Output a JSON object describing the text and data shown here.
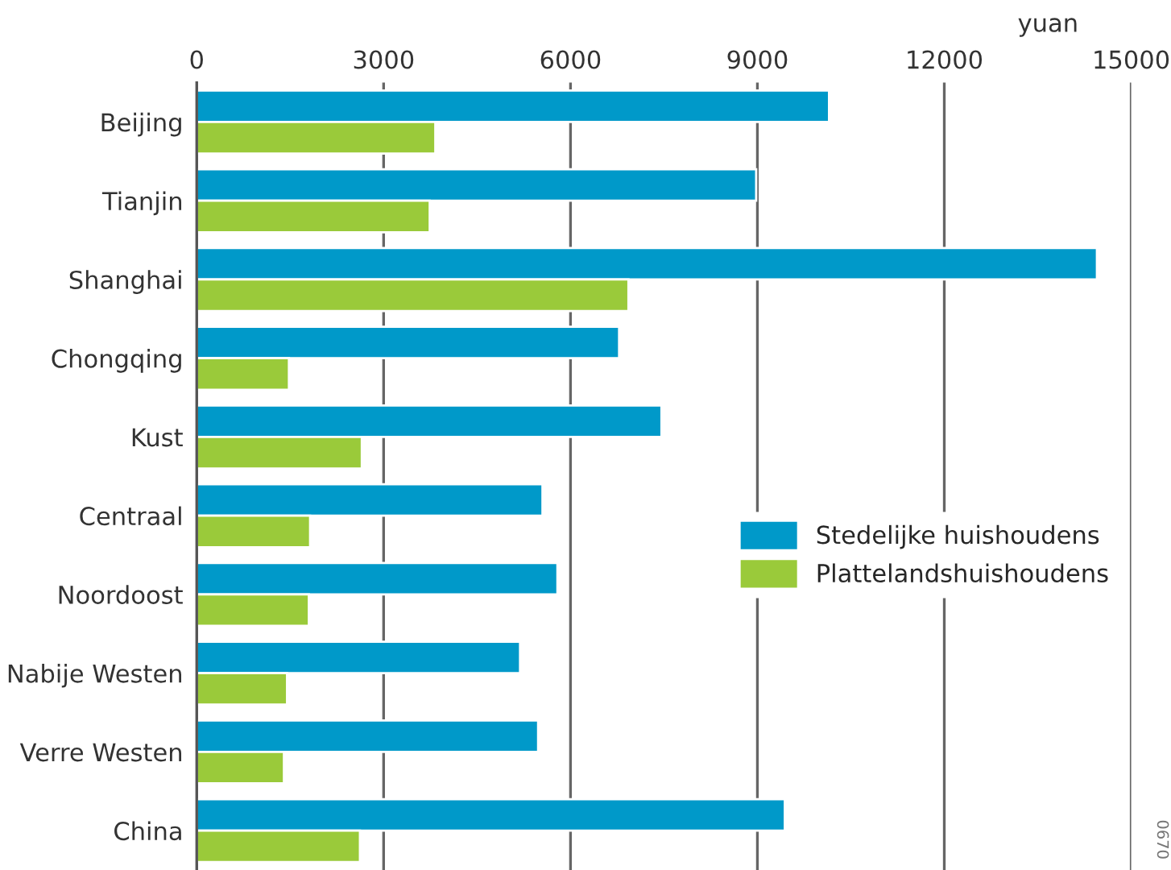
{
  "chart_data": {
    "type": "bar",
    "orientation": "horizontal",
    "xlabel": "yuan",
    "categories": [
      "Beijing",
      "Tianjin",
      "Shanghai",
      "Chongqing",
      "Kust",
      "Centraal",
      "Noordoost",
      "Nabije Westen",
      "Verre Westen",
      "China"
    ],
    "series": [
      {
        "name": "Stedelijke huishoudens",
        "color": "#0099c9",
        "values": [
          10150,
          8980,
          14450,
          6780,
          7460,
          5550,
          5790,
          5190,
          5480,
          9440
        ]
      },
      {
        "name": "Plattelandshuishoudens",
        "color": "#9aca3a",
        "values": [
          3830,
          3740,
          6930,
          1480,
          2650,
          1820,
          1800,
          1450,
          1400,
          2620
        ]
      }
    ],
    "xlim": [
      0,
      15000
    ],
    "xticks": [
      0,
      3000,
      6000,
      9000,
      12000,
      15000
    ],
    "grid": "x",
    "legend": "right",
    "annotations": [
      "0670"
    ]
  }
}
